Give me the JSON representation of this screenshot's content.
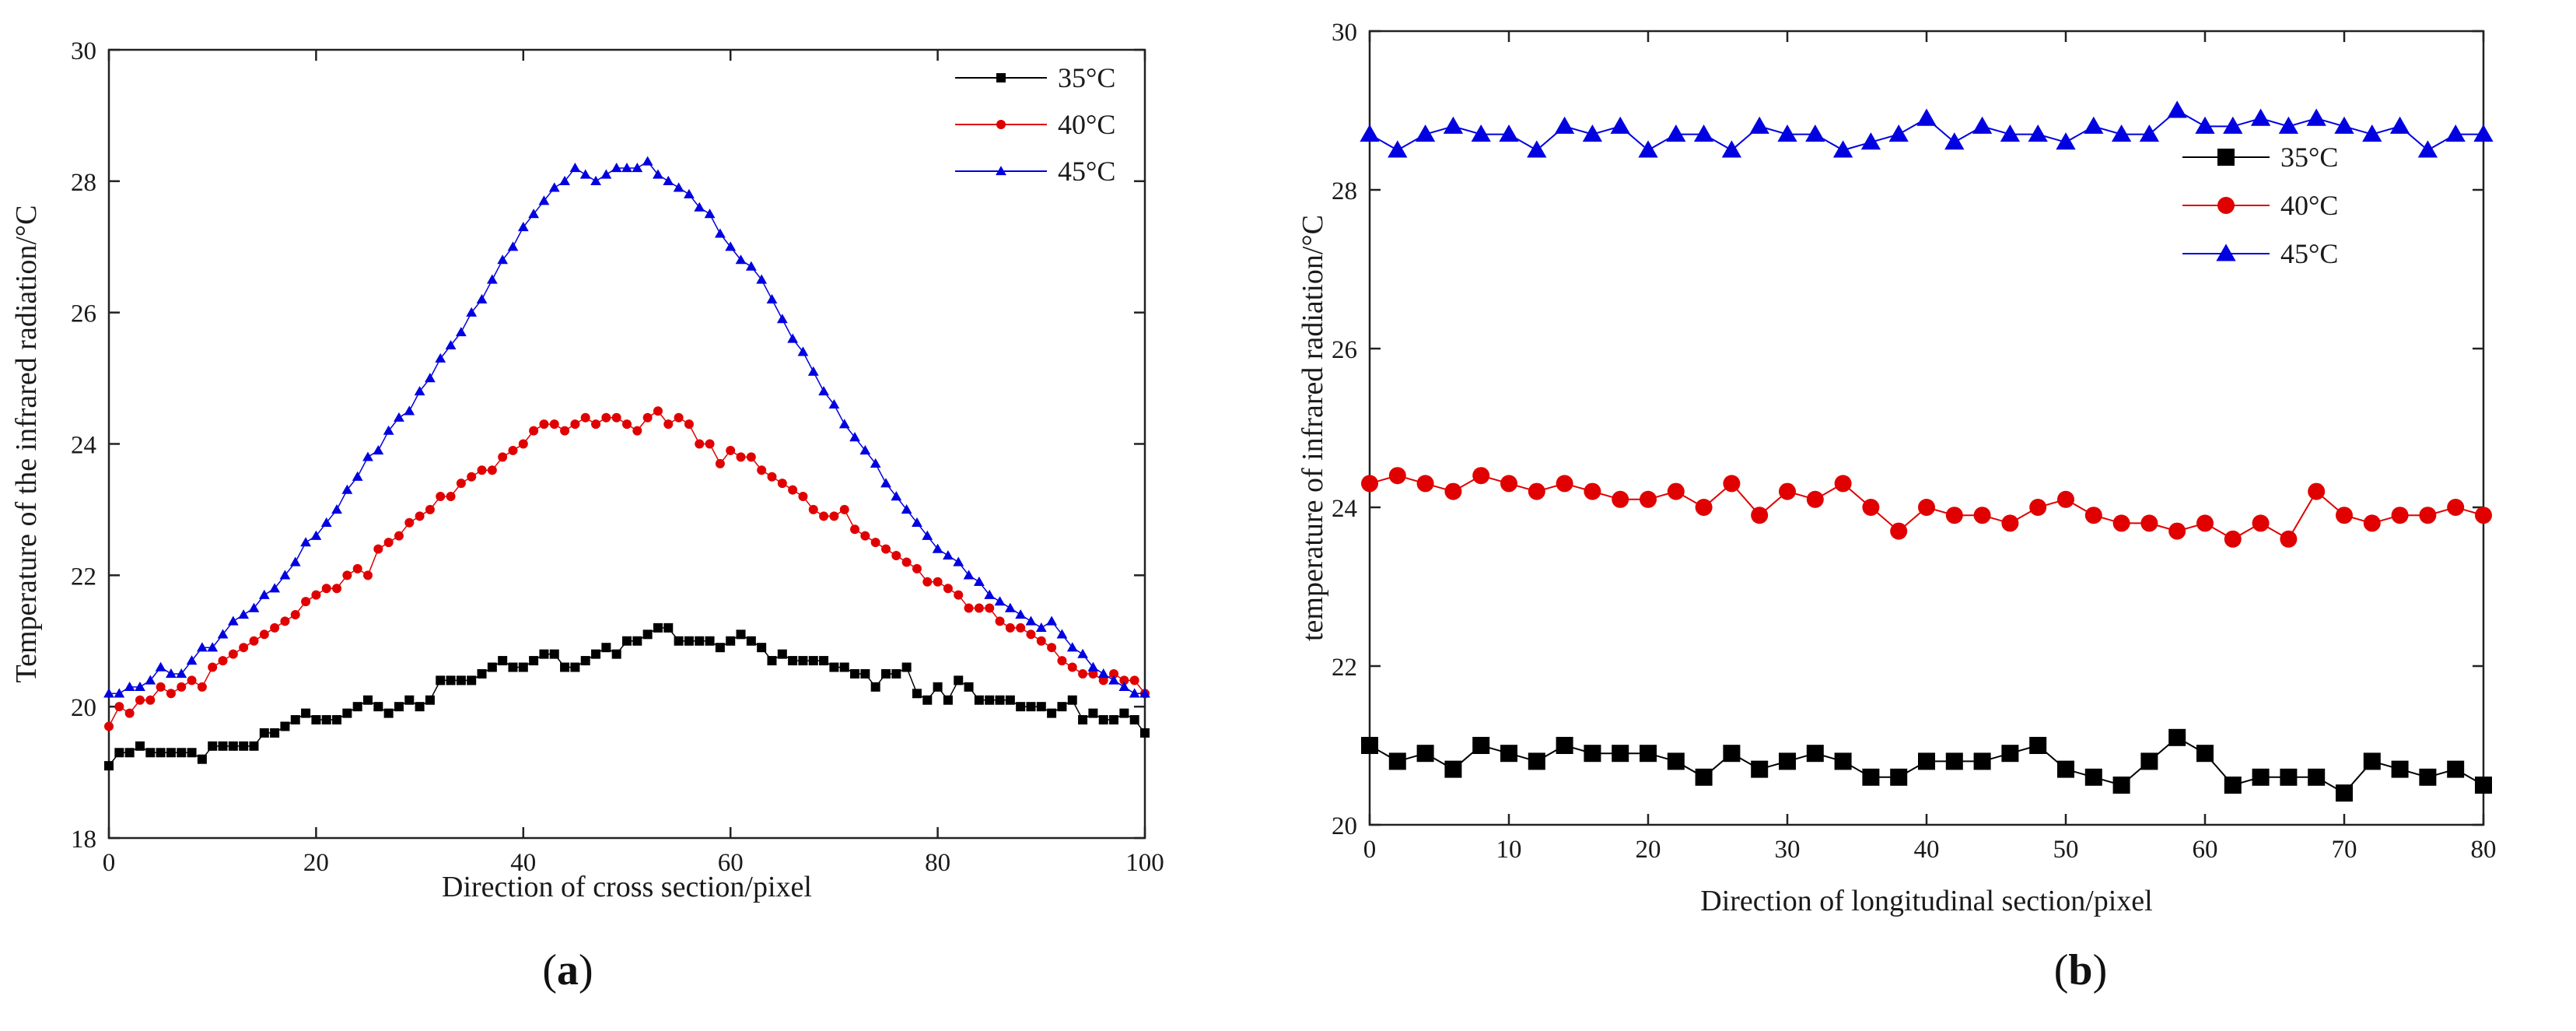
{
  "chart_data": [
    {
      "id": "a",
      "type": "line",
      "title": "",
      "xlabel": "Direction of cross section/pixel",
      "ylabel": "Temperature of the infrared radiation/°C",
      "xlim": [
        0,
        100
      ],
      "ylim": [
        18,
        30
      ],
      "xticks": [
        0,
        20,
        40,
        60,
        80,
        100
      ],
      "yticks": [
        18,
        20,
        22,
        24,
        26,
        28,
        30
      ],
      "grid": false,
      "legend_position": "top-right",
      "x_step": 1,
      "series": [
        {
          "name": "35°C",
          "color": "#000000",
          "marker": "square",
          "marker_size": "small",
          "values": [
            19.1,
            19.3,
            19.3,
            19.4,
            19.3,
            19.3,
            19.3,
            19.3,
            19.3,
            19.2,
            19.4,
            19.4,
            19.4,
            19.4,
            19.4,
            19.6,
            19.6,
            19.7,
            19.8,
            19.9,
            19.8,
            19.8,
            19.8,
            19.9,
            20.0,
            20.1,
            20.0,
            19.9,
            20.0,
            20.1,
            20.0,
            20.1,
            20.4,
            20.4,
            20.4,
            20.4,
            20.5,
            20.6,
            20.7,
            20.6,
            20.6,
            20.7,
            20.8,
            20.8,
            20.6,
            20.6,
            20.7,
            20.8,
            20.9,
            20.8,
            21.0,
            21.0,
            21.1,
            21.2,
            21.2,
            21.0,
            21.0,
            21.0,
            21.0,
            20.9,
            21.0,
            21.1,
            21.0,
            20.9,
            20.7,
            20.8,
            20.7,
            20.7,
            20.7,
            20.7,
            20.6,
            20.6,
            20.5,
            20.5,
            20.3,
            20.5,
            20.5,
            20.6,
            20.2,
            20.1,
            20.3,
            20.1,
            20.4,
            20.3,
            20.1,
            20.1,
            20.1,
            20.1,
            20.0,
            20.0,
            20.0,
            19.9,
            20.0,
            20.1,
            19.8,
            19.9,
            19.8,
            19.8,
            19.9,
            19.8,
            19.6
          ]
        },
        {
          "name": "40°C",
          "color": "#e00000",
          "marker": "circle",
          "marker_size": "small",
          "values": [
            19.7,
            20.0,
            19.9,
            20.1,
            20.1,
            20.3,
            20.2,
            20.3,
            20.4,
            20.3,
            20.6,
            20.7,
            20.8,
            20.9,
            21.0,
            21.1,
            21.2,
            21.3,
            21.4,
            21.6,
            21.7,
            21.8,
            21.8,
            22.0,
            22.1,
            22.0,
            22.4,
            22.5,
            22.6,
            22.8,
            22.9,
            23.0,
            23.2,
            23.2,
            23.4,
            23.5,
            23.6,
            23.6,
            23.8,
            23.9,
            24.0,
            24.2,
            24.3,
            24.3,
            24.2,
            24.3,
            24.4,
            24.3,
            24.4,
            24.4,
            24.3,
            24.2,
            24.4,
            24.5,
            24.3,
            24.4,
            24.3,
            24.0,
            24.0,
            23.7,
            23.9,
            23.8,
            23.8,
            23.6,
            23.5,
            23.4,
            23.3,
            23.2,
            23.0,
            22.9,
            22.9,
            23.0,
            22.7,
            22.6,
            22.5,
            22.4,
            22.3,
            22.2,
            22.1,
            21.9,
            21.9,
            21.8,
            21.7,
            21.5,
            21.5,
            21.5,
            21.3,
            21.2,
            21.2,
            21.1,
            21.0,
            20.9,
            20.7,
            20.6,
            20.5,
            20.5,
            20.4,
            20.5,
            20.4,
            20.4,
            20.2
          ]
        },
        {
          "name": "45°C",
          "color": "#0000e0",
          "marker": "triangle",
          "marker_size": "small",
          "values": [
            20.2,
            20.2,
            20.3,
            20.3,
            20.4,
            20.6,
            20.5,
            20.5,
            20.7,
            20.9,
            20.9,
            21.1,
            21.3,
            21.4,
            21.5,
            21.7,
            21.8,
            22.0,
            22.2,
            22.5,
            22.6,
            22.8,
            23.0,
            23.3,
            23.5,
            23.8,
            23.9,
            24.2,
            24.4,
            24.5,
            24.8,
            25.0,
            25.3,
            25.5,
            25.7,
            26.0,
            26.2,
            26.5,
            26.8,
            27.0,
            27.3,
            27.5,
            27.7,
            27.9,
            28.0,
            28.2,
            28.1,
            28.0,
            28.1,
            28.2,
            28.2,
            28.2,
            28.3,
            28.1,
            28.0,
            27.9,
            27.8,
            27.6,
            27.5,
            27.2,
            27.0,
            26.8,
            26.7,
            26.5,
            26.2,
            25.9,
            25.6,
            25.4,
            25.1,
            24.8,
            24.6,
            24.3,
            24.1,
            23.9,
            23.7,
            23.4,
            23.2,
            23.0,
            22.8,
            22.6,
            22.4,
            22.3,
            22.2,
            22.0,
            21.9,
            21.7,
            21.6,
            21.5,
            21.4,
            21.3,
            21.2,
            21.3,
            21.1,
            20.9,
            20.8,
            20.6,
            20.5,
            20.4,
            20.3,
            20.2,
            20.2
          ]
        }
      ]
    },
    {
      "id": "b",
      "type": "line",
      "title": "",
      "xlabel": "Direction of longitudinal section/pixel",
      "ylabel": "temperature of infrared radiation/°C",
      "xlim": [
        0,
        80
      ],
      "ylim": [
        20,
        30
      ],
      "xticks": [
        0,
        10,
        20,
        30,
        40,
        50,
        60,
        70,
        80
      ],
      "yticks": [
        20,
        22,
        24,
        26,
        28,
        30
      ],
      "grid": false,
      "legend_position": "upper-right",
      "x_step": 2,
      "series": [
        {
          "name": "35°C",
          "color": "#000000",
          "marker": "square",
          "marker_size": "large",
          "values": [
            21.0,
            20.8,
            20.9,
            20.7,
            21.0,
            20.9,
            20.8,
            21.0,
            20.9,
            20.9,
            20.9,
            20.8,
            20.6,
            20.9,
            20.7,
            20.8,
            20.9,
            20.8,
            20.6,
            20.6,
            20.8,
            20.8,
            20.8,
            20.9,
            21.0,
            20.7,
            20.6,
            20.5,
            20.8,
            21.1,
            20.9,
            20.5,
            20.6,
            20.6,
            20.6,
            20.4,
            20.8,
            20.7,
            20.6,
            20.7,
            20.5
          ]
        },
        {
          "name": "40°C",
          "color": "#e00000",
          "marker": "circle",
          "marker_size": "large",
          "values": [
            24.3,
            24.4,
            24.3,
            24.2,
            24.4,
            24.3,
            24.2,
            24.3,
            24.2,
            24.1,
            24.1,
            24.2,
            24.0,
            24.3,
            23.9,
            24.2,
            24.1,
            24.3,
            24.0,
            23.7,
            24.0,
            23.9,
            23.9,
            23.8,
            24.0,
            24.1,
            23.9,
            23.8,
            23.8,
            23.7,
            23.8,
            23.6,
            23.8,
            23.6,
            24.2,
            23.9,
            23.8,
            23.9,
            23.9,
            24.0,
            23.9
          ]
        },
        {
          "name": "45°C",
          "color": "#0000e0",
          "marker": "triangle",
          "marker_size": "large",
          "values": [
            28.7,
            28.5,
            28.7,
            28.8,
            28.7,
            28.7,
            28.5,
            28.8,
            28.7,
            28.8,
            28.5,
            28.7,
            28.7,
            28.5,
            28.8,
            28.7,
            28.7,
            28.5,
            28.6,
            28.7,
            28.9,
            28.6,
            28.8,
            28.7,
            28.7,
            28.6,
            28.8,
            28.7,
            28.7,
            29.0,
            28.8,
            28.8,
            28.9,
            28.8,
            28.9,
            28.8,
            28.7,
            28.8,
            28.5,
            28.7,
            28.7
          ]
        }
      ]
    }
  ],
  "captions": {
    "a": "a",
    "b": "b"
  }
}
